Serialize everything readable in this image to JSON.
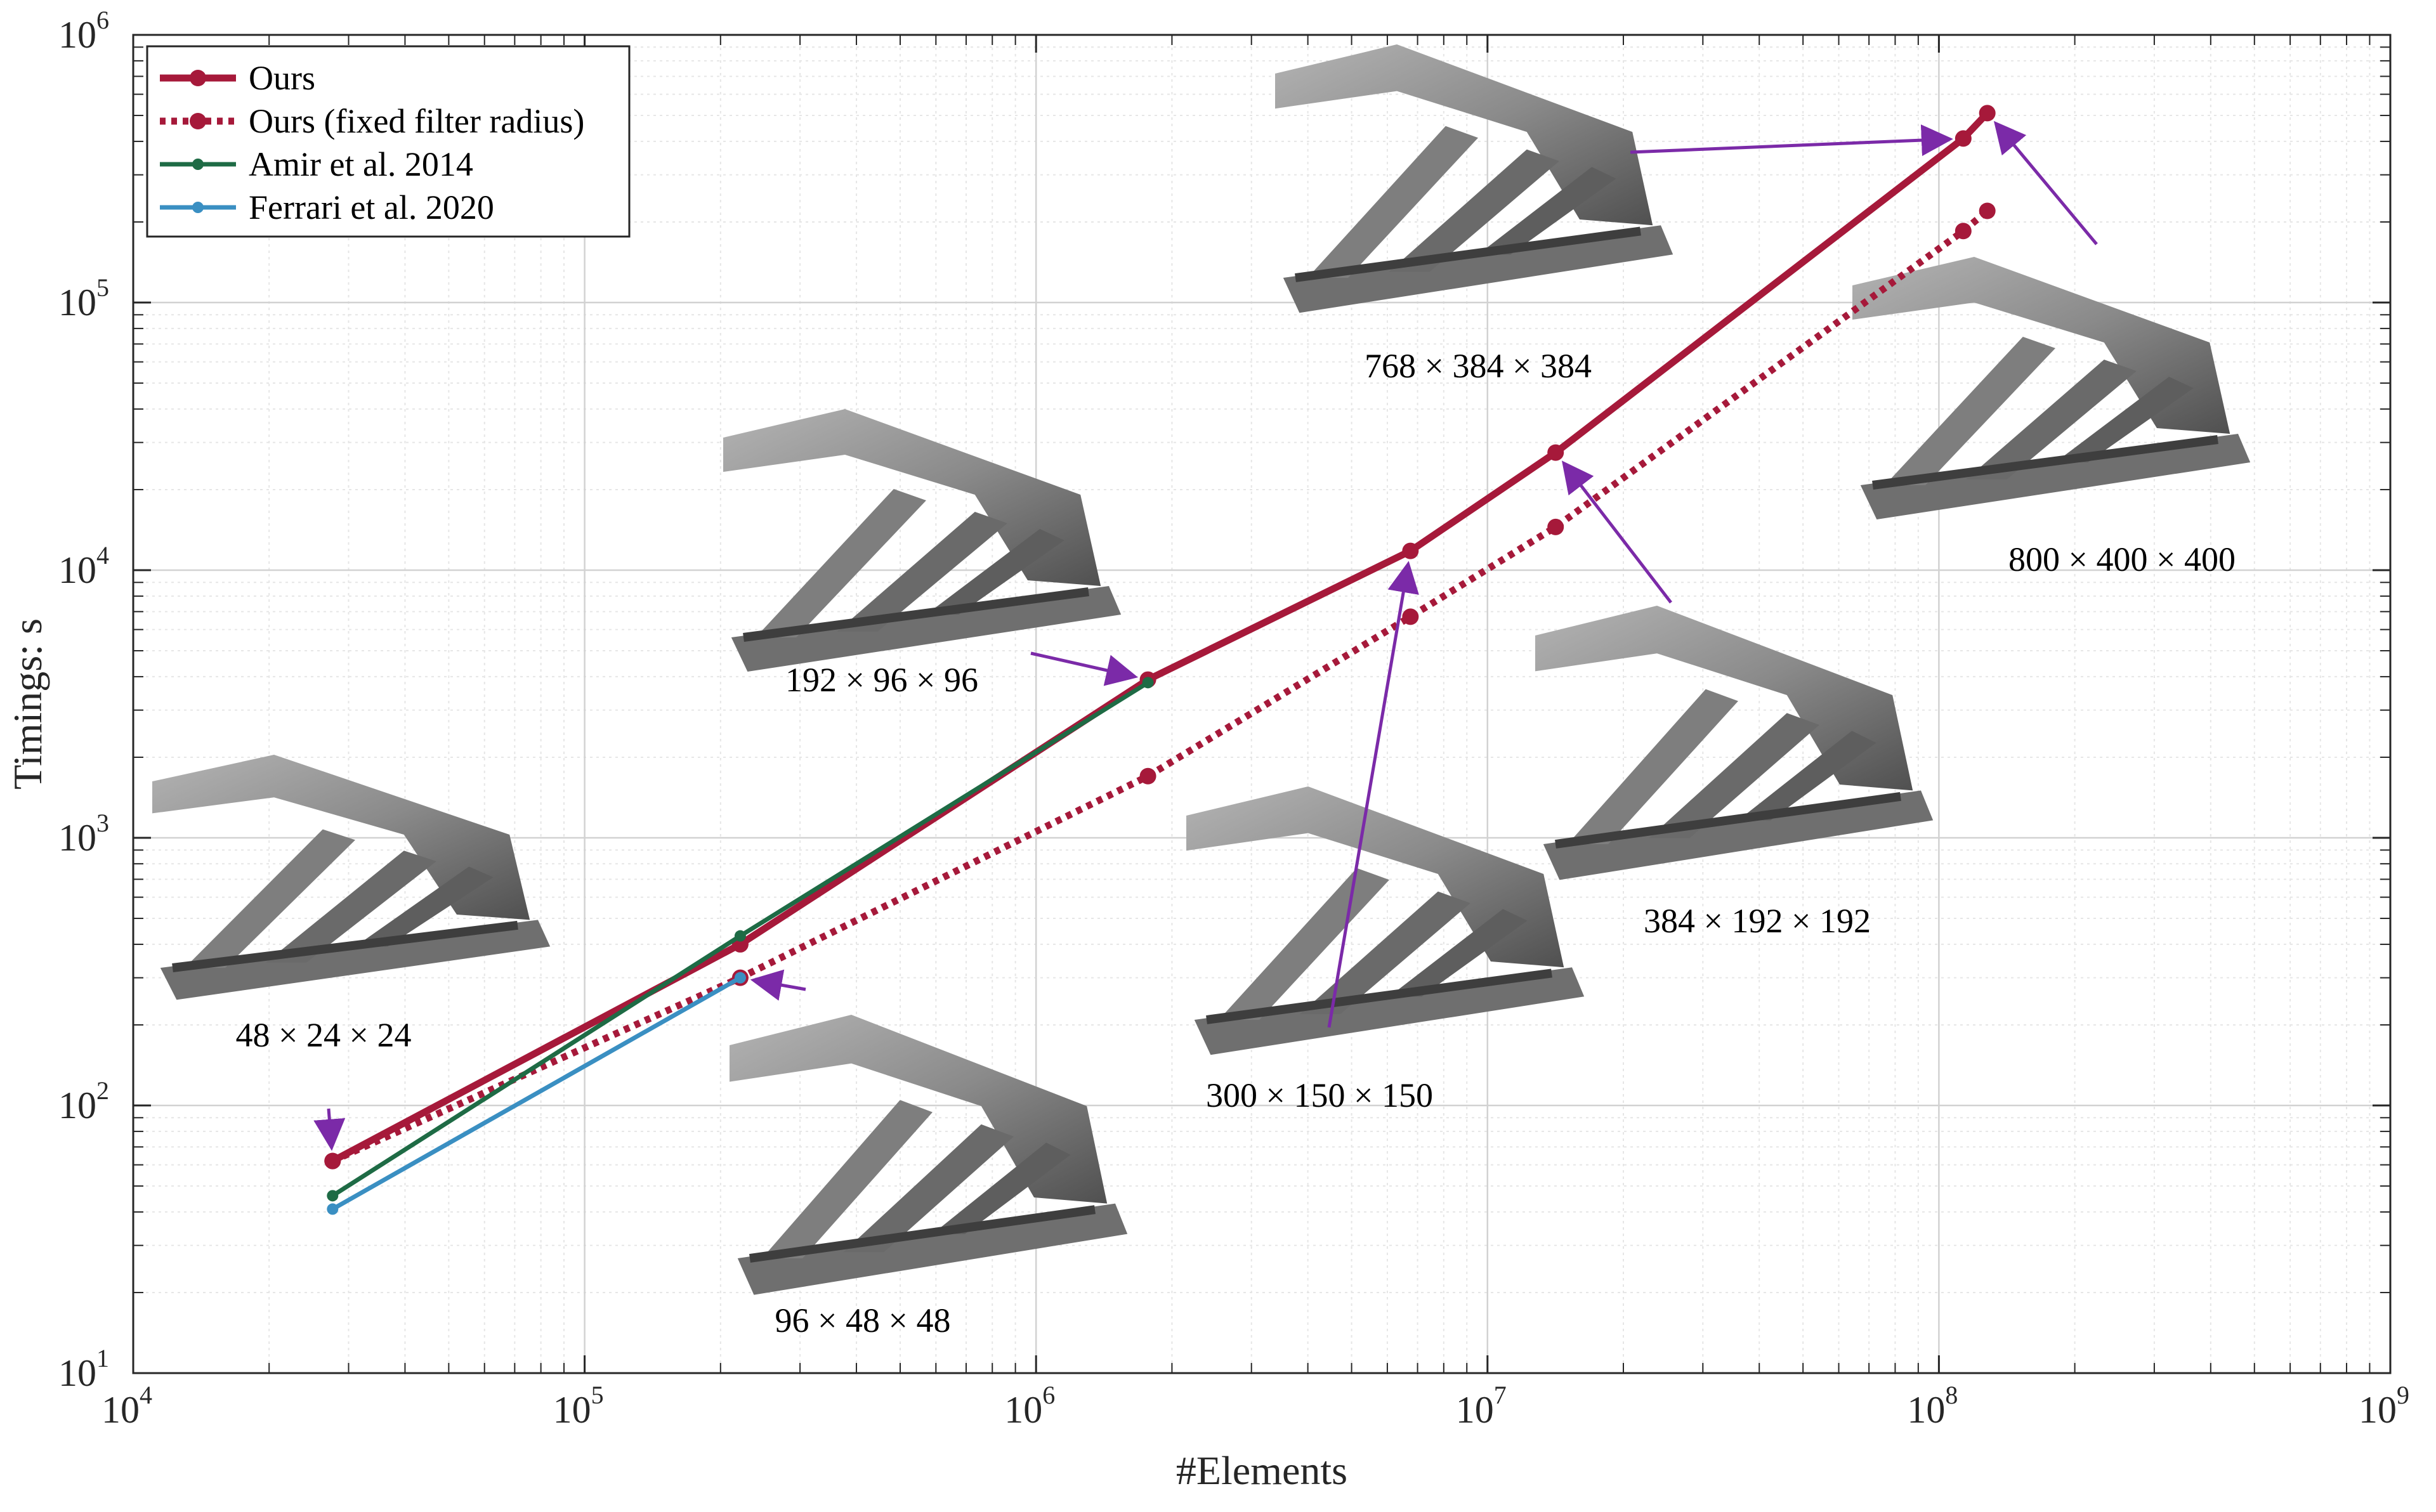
{
  "chart_data": {
    "type": "line",
    "xscale": "log",
    "yscale": "log",
    "xlim": [
      10000,
      1000000000
    ],
    "ylim": [
      10,
      1000000
    ],
    "xlabel": "#Elements",
    "ylabel": "Timings: s",
    "grid": true,
    "minor_grid": true,
    "legend_position": "top-left",
    "x_ticks": [
      {
        "base": "10",
        "exp": "4"
      },
      {
        "base": "10",
        "exp": "5"
      },
      {
        "base": "10",
        "exp": "6"
      },
      {
        "base": "10",
        "exp": "7"
      },
      {
        "base": "10",
        "exp": "8"
      },
      {
        "base": "10",
        "exp": "9"
      }
    ],
    "y_ticks": [
      {
        "base": "10",
        "exp": "1"
      },
      {
        "base": "10",
        "exp": "2"
      },
      {
        "base": "10",
        "exp": "3"
      },
      {
        "base": "10",
        "exp": "4"
      },
      {
        "base": "10",
        "exp": "5"
      },
      {
        "base": "10",
        "exp": "6"
      }
    ],
    "series": [
      {
        "name": "Ours",
        "color": "#a6193a",
        "style": "solid",
        "x": [
          27648,
          221184,
          1769472,
          6750000,
          14155776,
          113246208,
          128000000
        ],
        "y": [
          62,
          400,
          3900,
          11800,
          27500,
          410000,
          510000
        ]
      },
      {
        "name": "Ours (fixed filter radius)",
        "color": "#a6193a",
        "style": "dotted",
        "x": [
          27648,
          221184,
          1769472,
          6750000,
          14155776,
          113246208,
          128000000
        ],
        "y": [
          62,
          300,
          1700,
          6700,
          14500,
          185000,
          220000
        ]
      },
      {
        "name": "Amir et al. 2014",
        "color": "#1e6b45",
        "style": "solid",
        "x": [
          27648,
          221184,
          1769472
        ],
        "y": [
          46,
          430,
          3800
        ]
      },
      {
        "name": "Ferrari et al. 2020",
        "color": "#3a8fc2",
        "style": "solid",
        "x": [
          27648,
          221184
        ],
        "y": [
          41,
          300
        ]
      }
    ],
    "annotations": [
      {
        "label": "48 × 24 × 24",
        "x": 27648,
        "y": 62
      },
      {
        "label": "96 × 48 × 48",
        "x": 221184,
        "y": 300
      },
      {
        "label": "192 × 96 × 96",
        "x": 1769472,
        "y": 3900
      },
      {
        "label": "300 × 150 × 150",
        "x": 6750000,
        "y": 11800
      },
      {
        "label": "384 × 192 × 192",
        "x": 14155776,
        "y": 27500
      },
      {
        "label": "768 × 384 × 384",
        "x": 113246208,
        "y": 410000
      },
      {
        "label": "800 × 400 × 400",
        "x": 128000000,
        "y": 510000
      }
    ]
  },
  "colors": {
    "arrow": "#7b2aa8",
    "structure_light": "#a3a3a3",
    "structure_dark": "#4a4a4a"
  }
}
